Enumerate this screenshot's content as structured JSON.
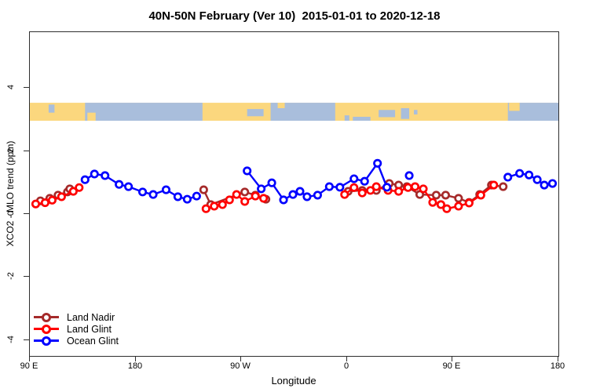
{
  "title": "40N-50N February (Ver 10)  2015-01-01 to 2020-12-18",
  "axes": {
    "x_label": "Longitude",
    "y_label": "XCO2 - MLO trend (ppm)",
    "x_ticks": [
      {
        "deg": 0,
        "label": "90 E"
      },
      {
        "deg": 90,
        "label": "180"
      },
      {
        "deg": 180,
        "label": "90 W"
      },
      {
        "deg": 270,
        "label": "0"
      },
      {
        "deg": 360,
        "label": "90 E"
      },
      {
        "deg": 450,
        "label": "180"
      }
    ],
    "y_ticks": [
      {
        "value": 4,
        "label": "4"
      },
      {
        "value": 2,
        "label": "2"
      },
      {
        "value": 0,
        "label": "0"
      },
      {
        "value": -2,
        "label": "-2"
      },
      {
        "value": -4,
        "label": "-4"
      }
    ]
  },
  "legend": {
    "items": [
      {
        "label": "Land Nadir",
        "color": "#A52A2A"
      },
      {
        "label": "Land Glint",
        "color": "#FF0000"
      },
      {
        "label": "Ocean Glint",
        "color": "#0000FF"
      }
    ]
  },
  "chart_data": {
    "type": "line",
    "title": "40N-50N February (Ver 10)  2015-01-01 to 2020-12-18",
    "xlabel": "Longitude",
    "ylabel": "XCO2 - MLO trend (ppm)",
    "x_axis_note": "x stored as degrees east of 90E along a 450-degree wrapped longitude axis (0=90E, 90=180, 180=90W, 270=0, 360=90E, 450=180)",
    "x_range_deg": [
      0,
      450
    ],
    "ylim": [
      -4.5,
      5.77
    ],
    "grid": false,
    "legend_position": "bottom-left",
    "map_strip": {
      "comment": "land/ocean band drawn across the plot between y values",
      "top_val": 3.53,
      "bottom_val": 2.96,
      "land_color": "#FBD77E",
      "ocean_color": "#A9BEDC",
      "ocean_segments_deg": [
        [
          47,
          147
        ],
        [
          205,
          260
        ],
        [
          407,
          450
        ]
      ],
      "lake_patches": [
        {
          "deg": [
            16,
            21
          ],
          "v": [
            0.1,
            0.55
          ]
        },
        {
          "deg": [
            185,
            199
          ],
          "v": [
            0.35,
            0.75
          ]
        },
        {
          "deg": [
            268,
            272
          ],
          "v": [
            0.7,
            1.0
          ]
        },
        {
          "deg": [
            275,
            290
          ],
          "v": [
            0.78,
            1.0
          ]
        },
        {
          "deg": [
            297,
            311
          ],
          "v": [
            0.4,
            0.8
          ]
        },
        {
          "deg": [
            316,
            323
          ],
          "v": [
            0.3,
            0.9
          ]
        },
        {
          "deg": [
            327,
            330
          ],
          "v": [
            0.4,
            0.65
          ]
        }
      ],
      "island_patches": [
        {
          "deg": [
            49,
            56
          ],
          "v": [
            0.55,
            1.0
          ]
        },
        {
          "deg": [
            211,
            217
          ],
          "v": [
            0.0,
            0.3
          ]
        },
        {
          "deg": [
            408,
            417
          ],
          "v": [
            0.0,
            0.45
          ]
        }
      ]
    },
    "series": [
      {
        "name": "Land Nadir",
        "color": "#A52A2A",
        "segments": [
          [
            [
              9,
              0.42
            ],
            [
              17,
              0.5
            ],
            [
              24,
              0.6
            ],
            [
              32,
              0.7
            ],
            [
              34,
              0.8
            ]
          ],
          [
            [
              148,
              0.77
            ],
            [
              154,
              0.3
            ],
            [
              183,
              0.7
            ],
            [
              192,
              0.6
            ],
            [
              201,
              0.47
            ]
          ],
          [
            [
              271,
              0.72
            ],
            [
              283,
              0.75
            ],
            [
              295,
              0.75
            ],
            [
              306,
              0.97
            ],
            [
              314,
              0.92
            ],
            [
              321,
              0.87
            ],
            [
              332,
              0.62
            ],
            [
              346,
              0.6
            ],
            [
              354,
              0.6
            ],
            [
              365,
              0.5
            ],
            [
              374,
              0.37
            ],
            [
              383,
              0.62
            ],
            [
              393,
              0.92
            ],
            [
              403,
              0.87
            ]
          ]
        ]
      },
      {
        "name": "Land Glint",
        "color": "#FF0000",
        "segments": [
          [
            [
              5,
              0.32
            ],
            [
              13,
              0.36
            ],
            [
              19,
              0.44
            ],
            [
              27,
              0.55
            ],
            [
              37,
              0.72
            ],
            [
              42,
              0.84
            ]
          ],
          [
            [
              150,
              0.17
            ],
            [
              157,
              0.25
            ],
            [
              164,
              0.3
            ],
            [
              170,
              0.45
            ],
            [
              176,
              0.62
            ],
            [
              183,
              0.4
            ],
            [
              192,
              0.57
            ],
            [
              199,
              0.5
            ]
          ],
          [
            [
              268,
              0.62
            ],
            [
              276,
              0.84
            ],
            [
              283,
              0.67
            ],
            [
              290,
              0.75
            ],
            [
              295,
              0.87
            ],
            [
              305,
              0.75
            ],
            [
              314,
              0.72
            ],
            [
              322,
              0.84
            ],
            [
              328,
              0.87
            ],
            [
              335,
              0.8
            ],
            [
              343,
              0.37
            ],
            [
              350,
              0.3
            ],
            [
              355,
              0.17
            ],
            [
              365,
              0.25
            ],
            [
              374,
              0.35
            ],
            [
              384,
              0.6
            ],
            [
              395,
              0.92
            ]
          ]
        ]
      },
      {
        "name": "Ocean Glint",
        "color": "#0000FF",
        "segments": [
          [
            [
              47,
              1.09
            ],
            [
              55,
              1.27
            ],
            [
              64,
              1.22
            ],
            [
              76,
              0.94
            ],
            [
              84,
              0.87
            ],
            [
              96,
              0.7
            ],
            [
              105,
              0.62
            ],
            [
              116,
              0.77
            ],
            [
              126,
              0.55
            ],
            [
              134,
              0.47
            ],
            [
              142,
              0.57
            ]
          ],
          [
            [
              185,
              1.37
            ],
            [
              197,
              0.8
            ],
            [
              206,
              0.99
            ],
            [
              216,
              0.45
            ],
            [
              224,
              0.62
            ],
            [
              230,
              0.72
            ],
            [
              236,
              0.55
            ],
            [
              245,
              0.6
            ],
            [
              255,
              0.87
            ],
            [
              264,
              0.85
            ],
            [
              276,
              1.12
            ],
            [
              285,
              1.04
            ],
            [
              296,
              1.61
            ],
            [
              304,
              0.85
            ]
          ],
          [
            [
              323,
              1.22
            ]
          ],
          [
            [
              407,
              1.17
            ],
            [
              417,
              1.29
            ],
            [
              425,
              1.24
            ],
            [
              432,
              1.09
            ],
            [
              438,
              0.92
            ],
            [
              445,
              0.97
            ]
          ]
        ]
      }
    ]
  }
}
